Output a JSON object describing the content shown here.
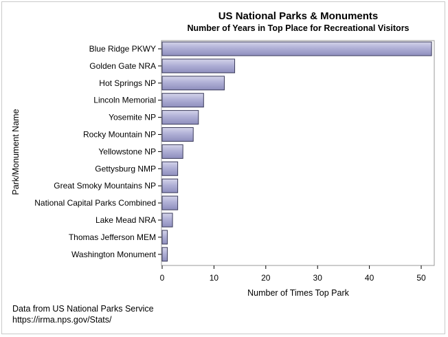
{
  "chart_data": {
    "type": "bar",
    "orientation": "horizontal",
    "title": "US National Parks & Monuments",
    "subtitle": "Number of Years in Top Place for Recreational Visitors",
    "xlabel": "Number of Times Top Park",
    "ylabel": "Park/Monument Name",
    "xlim": [
      0,
      52
    ],
    "xticks": [
      0,
      10,
      20,
      30,
      40,
      50
    ],
    "grid": false,
    "categories": [
      "Blue Ridge PKWY",
      "Golden Gate NRA",
      "Hot Springs NP",
      "Lincoln Memorial",
      "Yosemite NP",
      "Rocky Mountain NP",
      "Yellowstone NP",
      "Gettysburg NMP",
      "Great Smoky Mountains NP",
      "National Capital Parks Combined",
      "Lake Mead NRA",
      "Thomas Jefferson MEM",
      "Washington Monument"
    ],
    "values": [
      52,
      14,
      12,
      8,
      7,
      6,
      4,
      3,
      3,
      3,
      2,
      1,
      1
    ],
    "bar_color": "#a9a9d0",
    "bar_edge_color": "#3a3a5a"
  },
  "footnote": {
    "line1": "Data from US National Parks Service",
    "line2": "https://irma.nps.gov/Stats/"
  }
}
